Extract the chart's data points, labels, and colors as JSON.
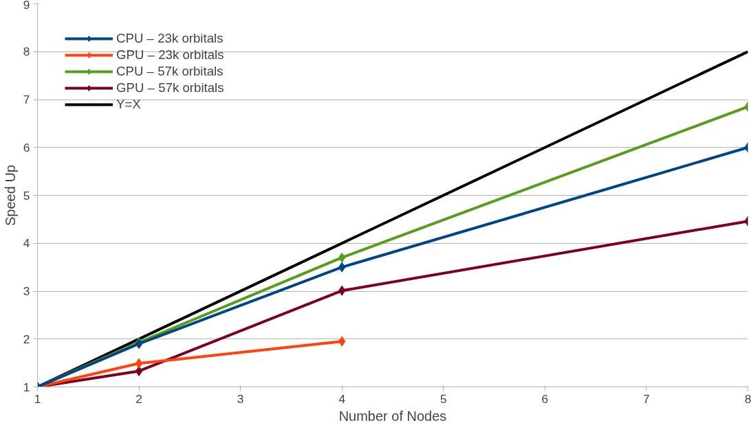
{
  "chart_data": {
    "type": "line",
    "xlabel": "Number of Nodes",
    "ylabel": "Speed Up",
    "xlim": [
      1,
      8
    ],
    "xticks": [
      1,
      2,
      3,
      4,
      5,
      6,
      7,
      8
    ],
    "ylim": [
      1,
      9
    ],
    "yticks": [
      1,
      2,
      3,
      4,
      5,
      6,
      7,
      8,
      9
    ],
    "grid": "y",
    "legend": "top left",
    "marker": "diamond",
    "line_style": "solid",
    "series": [
      {
        "name": "CPU – 23k orbitals",
        "color": "#004586",
        "x": [
          1,
          2,
          4,
          8
        ],
        "values": [
          1,
          1.9,
          3.5,
          6.0
        ]
      },
      {
        "name": "GPU – 23k orbitals",
        "color": "#ff420e",
        "x": [
          1,
          2,
          4
        ],
        "values": [
          1,
          1.49,
          1.95
        ]
      },
      {
        "name": "CPU – 57k orbitals",
        "color": "#579d1c",
        "x": [
          1,
          2,
          4,
          8
        ],
        "values": [
          1,
          1.93,
          3.7,
          6.85
        ]
      },
      {
        "name": "GPU – 57k orbitals",
        "color": "#7e0021",
        "x": [
          1,
          2,
          4,
          8
        ],
        "values": [
          1,
          1.33,
          3.01,
          4.46
        ]
      },
      {
        "name": "Y=X",
        "color": "#000000",
        "x": [
          1,
          8
        ],
        "values": [
          1,
          8
        ],
        "marker": "none"
      }
    ]
  }
}
